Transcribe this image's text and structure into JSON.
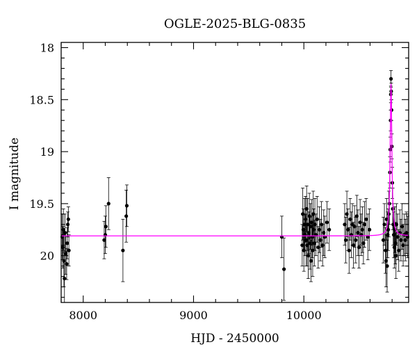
{
  "chart_data": {
    "type": "scatter",
    "title": "OGLE-2025-BLG-0835",
    "xlabel": "HJD - 2450000",
    "ylabel": "I magnitude",
    "xlim": [
      7800,
      10950
    ],
    "ylim": [
      20.45,
      17.95
    ],
    "y_inverted": true,
    "x_ticks": [
      8000,
      9000,
      10000
    ],
    "y_ticks": [
      18,
      18.5,
      19,
      19.5,
      20
    ],
    "y_tick_labels": [
      "18",
      "18.5",
      "19",
      "19.5",
      "20"
    ],
    "grid": false,
    "colors": {
      "points": "#000000",
      "model": "#ff00ff"
    },
    "series": [
      {
        "type": "errorbar",
        "points": [
          [
            7810,
            19.82,
            0.22
          ],
          [
            7815,
            19.92,
            0.2
          ],
          [
            7820,
            19.75,
            0.2
          ],
          [
            7825,
            20.05,
            0.25
          ],
          [
            7830,
            20.22,
            0.25
          ],
          [
            7835,
            19.78,
            0.18
          ],
          [
            7840,
            19.98,
            0.2
          ],
          [
            7850,
            20.08,
            0.15
          ],
          [
            7855,
            19.88,
            0.15
          ],
          [
            7860,
            19.7,
            0.12
          ],
          [
            7865,
            19.65,
            0.12
          ],
          [
            7870,
            19.95,
            0.15
          ],
          [
            8190,
            19.85,
            0.18
          ],
          [
            8200,
            19.8,
            0.18
          ],
          [
            8205,
            19.72,
            0.2
          ],
          [
            8230,
            19.5,
            0.25
          ],
          [
            8360,
            19.95,
            0.3
          ],
          [
            8390,
            19.62,
            0.25
          ],
          [
            8395,
            19.52,
            0.2
          ],
          [
            9800,
            19.82,
            0.2
          ],
          [
            9820,
            20.13,
            0.3
          ],
          [
            9985,
            19.9,
            0.2
          ],
          [
            9990,
            19.6,
            0.25
          ],
          [
            9995,
            19.75,
            0.2
          ],
          [
            10000,
            19.95,
            0.2
          ],
          [
            10005,
            19.7,
            0.25
          ],
          [
            10010,
            19.8,
            0.2
          ],
          [
            10015,
            19.65,
            0.22
          ],
          [
            10020,
            19.85,
            0.25
          ],
          [
            10025,
            19.55,
            0.22
          ],
          [
            10030,
            19.9,
            0.2
          ],
          [
            10035,
            19.7,
            0.25
          ],
          [
            10040,
            20.0,
            0.22
          ],
          [
            10045,
            19.78,
            0.2
          ],
          [
            10050,
            19.62,
            0.22
          ],
          [
            10055,
            19.88,
            0.25
          ],
          [
            10060,
            19.72,
            0.22
          ],
          [
            10065,
            20.05,
            0.2
          ],
          [
            10070,
            19.68,
            0.22
          ],
          [
            10075,
            19.82,
            0.2
          ],
          [
            10080,
            19.95,
            0.25
          ],
          [
            10085,
            19.6,
            0.22
          ],
          [
            10090,
            19.75,
            0.2
          ],
          [
            10095,
            19.88,
            0.22
          ],
          [
            10100,
            19.7,
            0.25
          ],
          [
            10110,
            19.8,
            0.2
          ],
          [
            10120,
            19.65,
            0.22
          ],
          [
            10130,
            19.92,
            0.2
          ],
          [
            10140,
            19.75,
            0.22
          ],
          [
            10150,
            19.85,
            0.2
          ],
          [
            10160,
            19.7,
            0.22
          ],
          [
            10170,
            19.9,
            0.2
          ],
          [
            10180,
            19.78,
            0.22
          ],
          [
            10190,
            19.82,
            0.2
          ],
          [
            10210,
            19.68,
            0.2
          ],
          [
            10230,
            19.75,
            0.2
          ],
          [
            10370,
            19.7,
            0.2
          ],
          [
            10380,
            19.85,
            0.22
          ],
          [
            10390,
            19.6,
            0.22
          ],
          [
            10400,
            19.75,
            0.2
          ],
          [
            10410,
            19.95,
            0.22
          ],
          [
            10420,
            19.65,
            0.2
          ],
          [
            10430,
            19.8,
            0.22
          ],
          [
            10440,
            19.7,
            0.2
          ],
          [
            10450,
            19.9,
            0.22
          ],
          [
            10460,
            19.72,
            0.2
          ],
          [
            10470,
            19.85,
            0.22
          ],
          [
            10480,
            19.62,
            0.2
          ],
          [
            10490,
            19.78,
            0.22
          ],
          [
            10500,
            19.92,
            0.2
          ],
          [
            10510,
            19.68,
            0.22
          ],
          [
            10520,
            19.8,
            0.2
          ],
          [
            10530,
            19.75,
            0.22
          ],
          [
            10540,
            19.88,
            0.2
          ],
          [
            10550,
            19.7,
            0.22
          ],
          [
            10565,
            19.65,
            0.2
          ],
          [
            10580,
            19.82,
            0.22
          ],
          [
            10595,
            19.75,
            0.2
          ],
          [
            10720,
            19.85,
            0.22
          ],
          [
            10730,
            19.7,
            0.2
          ],
          [
            10740,
            19.95,
            0.22
          ],
          [
            10745,
            20.05,
            0.25
          ],
          [
            10750,
            19.65,
            0.2
          ],
          [
            10755,
            20.1,
            0.25
          ],
          [
            10760,
            19.8,
            0.22
          ],
          [
            10765,
            19.75,
            0.2
          ],
          [
            10770,
            19.6,
            0.22
          ],
          [
            10775,
            19.5,
            0.2
          ],
          [
            10780,
            19.2,
            0.15
          ],
          [
            10783,
            18.98,
            0.12
          ],
          [
            10786,
            18.7,
            0.1
          ],
          [
            10788,
            18.45,
            0.08
          ],
          [
            10790,
            18.3,
            0.08
          ],
          [
            10792,
            18.42,
            0.08
          ],
          [
            10795,
            18.6,
            0.1
          ],
          [
            10798,
            18.95,
            0.12
          ],
          [
            10802,
            19.3,
            0.15
          ],
          [
            10806,
            19.55,
            0.2
          ],
          [
            10810,
            19.7,
            0.2
          ],
          [
            10815,
            19.8,
            0.22
          ],
          [
            10820,
            19.92,
            0.2
          ],
          [
            10825,
            19.75,
            0.22
          ],
          [
            10830,
            19.88,
            0.2
          ],
          [
            10835,
            20.0,
            0.22
          ],
          [
            10840,
            19.7,
            0.2
          ],
          [
            10850,
            19.82,
            0.22
          ],
          [
            10860,
            19.95,
            0.2
          ],
          [
            10870,
            19.78,
            0.22
          ],
          [
            10880,
            19.85,
            0.2
          ],
          [
            10890,
            19.72,
            0.22
          ],
          [
            10900,
            19.9,
            0.2
          ],
          [
            10910,
            19.8,
            0.2
          ],
          [
            10920,
            19.85,
            0.2
          ],
          [
            10930,
            19.78,
            0.2
          ],
          [
            10940,
            19.82,
            0.2
          ]
        ]
      },
      {
        "type": "model-line",
        "baseline": 19.81,
        "peak_x": 10790,
        "peak_y": 18.34,
        "width": 9
      }
    ]
  }
}
